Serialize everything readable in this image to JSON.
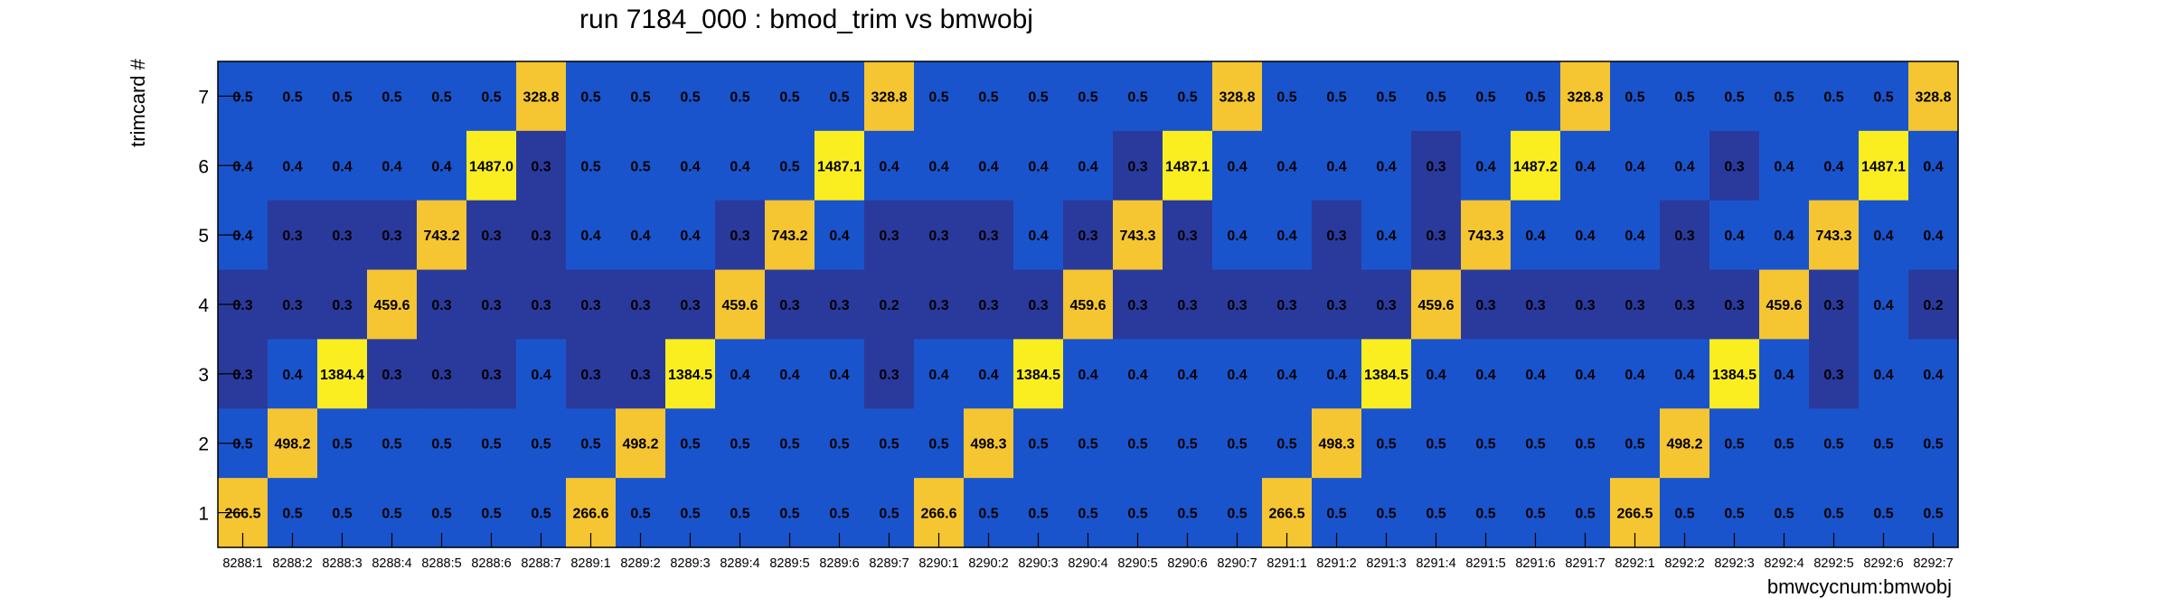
{
  "chart_data": {
    "type": "heatmap",
    "title": "run 7184_000 : bmod_trim vs bmwobj",
    "xlabel": "bmwcycnum:bmwobj",
    "ylabel": "trimcard #",
    "x_categories": [
      "8288:1",
      "8288:2",
      "8288:3",
      "8288:4",
      "8288:5",
      "8288:6",
      "8288:7",
      "8289:1",
      "8289:2",
      "8289:3",
      "8289:4",
      "8289:5",
      "8289:6",
      "8289:7",
      "8290:1",
      "8290:2",
      "8290:3",
      "8290:4",
      "8290:5",
      "8290:6",
      "8290:7",
      "8291:1",
      "8291:2",
      "8291:3",
      "8291:4",
      "8291:5",
      "8291:6",
      "8291:7",
      "8292:1",
      "8292:2",
      "8292:3",
      "8292:4",
      "8292:5",
      "8292:6",
      "8292:7"
    ],
    "y_categories": [
      "1",
      "2",
      "3",
      "4",
      "5",
      "6",
      "7"
    ],
    "rows": [
      {
        "trimcard": "7",
        "values": [
          "0.5",
          "0.5",
          "0.5",
          "0.5",
          "0.5",
          "0.5",
          "328.8",
          "0.5",
          "0.5",
          "0.5",
          "0.5",
          "0.5",
          "0.5",
          "328.8",
          "0.5",
          "0.5",
          "0.5",
          "0.5",
          "0.5",
          "0.5",
          "328.8",
          "0.5",
          "0.5",
          "0.5",
          "0.5",
          "0.5",
          "0.5",
          "328.8",
          "0.5",
          "0.5",
          "0.5",
          "0.5",
          "0.5",
          "0.5",
          "328.8"
        ]
      },
      {
        "trimcard": "6",
        "values": [
          "0.4",
          "0.4",
          "0.4",
          "0.4",
          "0.4",
          "1487.0",
          "0.3",
          "0.5",
          "0.5",
          "0.4",
          "0.4",
          "0.5",
          "1487.1",
          "0.4",
          "0.4",
          "0.4",
          "0.4",
          "0.4",
          "0.3",
          "1487.1",
          "0.4",
          "0.4",
          "0.4",
          "0.4",
          "0.3",
          "0.4",
          "1487.2",
          "0.4",
          "0.4",
          "0.4",
          "0.3",
          "0.4",
          "0.4",
          "1487.1",
          "0.4"
        ]
      },
      {
        "trimcard": "5",
        "values": [
          "0.4",
          "0.3",
          "0.3",
          "0.3",
          "743.2",
          "0.3",
          "0.3",
          "0.4",
          "0.4",
          "0.4",
          "0.3",
          "743.2",
          "0.4",
          "0.3",
          "0.3",
          "0.3",
          "0.4",
          "0.3",
          "743.3",
          "0.3",
          "0.4",
          "0.4",
          "0.3",
          "0.4",
          "0.3",
          "743.3",
          "0.4",
          "0.4",
          "0.4",
          "0.3",
          "0.4",
          "0.4",
          "743.3",
          "0.4",
          "0.4"
        ]
      },
      {
        "trimcard": "4",
        "values": [
          "0.3",
          "0.3",
          "0.3",
          "459.6",
          "0.3",
          "0.3",
          "0.3",
          "0.3",
          "0.3",
          "0.3",
          "459.6",
          "0.3",
          "0.3",
          "0.2",
          "0.3",
          "0.3",
          "0.3",
          "459.6",
          "0.3",
          "0.3",
          "0.3",
          "0.3",
          "0.3",
          "0.3",
          "459.6",
          "0.3",
          "0.3",
          "0.3",
          "0.3",
          "0.3",
          "0.3",
          "459.6",
          "0.3",
          "0.4",
          "0.2"
        ]
      },
      {
        "trimcard": "3",
        "values": [
          "0.3",
          "0.4",
          "1384.4",
          "0.3",
          "0.3",
          "0.3",
          "0.4",
          "0.3",
          "0.3",
          "1384.5",
          "0.4",
          "0.4",
          "0.4",
          "0.3",
          "0.4",
          "0.4",
          "1384.5",
          "0.4",
          "0.4",
          "0.4",
          "0.4",
          "0.4",
          "0.4",
          "1384.5",
          "0.4",
          "0.4",
          "0.4",
          "0.4",
          "0.4",
          "0.4",
          "1384.5",
          "0.4",
          "0.3",
          "0.4",
          "0.4"
        ]
      },
      {
        "trimcard": "2",
        "values": [
          "0.5",
          "498.2",
          "0.5",
          "0.5",
          "0.5",
          "0.5",
          "0.5",
          "0.5",
          "498.2",
          "0.5",
          "0.5",
          "0.5",
          "0.5",
          "0.5",
          "0.5",
          "498.3",
          "0.5",
          "0.5",
          "0.5",
          "0.5",
          "0.5",
          "0.5",
          "498.3",
          "0.5",
          "0.5",
          "0.5",
          "0.5",
          "0.5",
          "0.5",
          "498.2",
          "0.5",
          "0.5",
          "0.5",
          "0.5",
          "0.5"
        ]
      },
      {
        "trimcard": "1",
        "values": [
          "266.5",
          "0.5",
          "0.5",
          "0.5",
          "0.5",
          "0.5",
          "0.5",
          "266.6",
          "0.5",
          "0.5",
          "0.5",
          "0.5",
          "0.5",
          "0.5",
          "266.6",
          "0.5",
          "0.5",
          "0.5",
          "0.5",
          "0.5",
          "0.5",
          "266.5",
          "0.5",
          "0.5",
          "0.5",
          "0.5",
          "0.5",
          "0.5",
          "266.5",
          "0.5",
          "0.5",
          "0.5",
          "0.5",
          "0.5",
          "0.5"
        ]
      }
    ],
    "colors": {
      "low": "#2a3a9c",
      "mid": "#1a54cc",
      "peak_orange": "#f5c532",
      "peak_yellow": "#fbee20"
    }
  }
}
